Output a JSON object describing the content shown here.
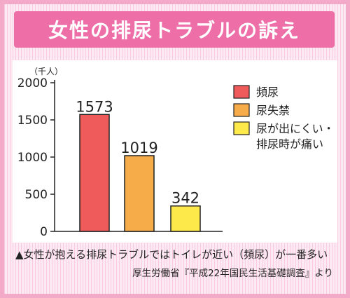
{
  "title": "女性の排尿トラブルの訴え",
  "chart_data": {
    "type": "bar",
    "unit_label": "（千人）",
    "categories": [
      "頻尿",
      "尿失禁",
      "尿が出にくい・排尿時が痛い"
    ],
    "values": [
      1573,
      1019,
      342
    ],
    "value_labels": [
      "1573",
      "1019",
      "342"
    ],
    "ylim": [
      0,
      2000
    ],
    "yticks": [
      0,
      500,
      1000,
      1500,
      2000
    ],
    "colors": [
      "#ef5a5a",
      "#f6ac48",
      "#fde94a"
    ],
    "legend": {
      "placement": "right",
      "entries": [
        {
          "lines": [
            "頻尿"
          ],
          "color": "#ef5a5a"
        },
        {
          "lines": [
            "尿失禁"
          ],
          "color": "#f6ac48"
        },
        {
          "lines": [
            "尿が出にくい・",
            "排尿時が痛い"
          ],
          "color": "#fde94a"
        }
      ]
    }
  },
  "note": "▲女性が抱える排尿トラブルではトイレが近い（頻尿）が一番多い",
  "source": "厚生労働省『平成22年国民生活基礎調査』より"
}
